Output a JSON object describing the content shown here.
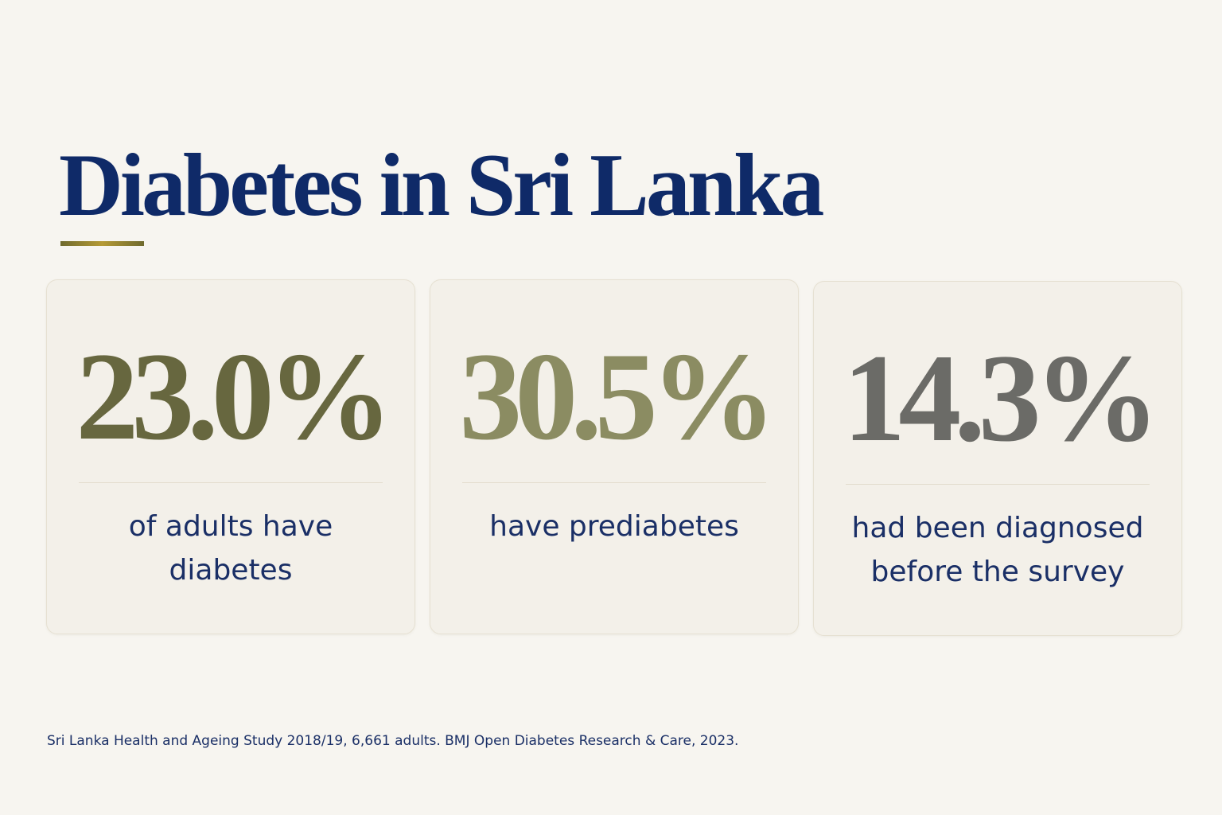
{
  "title": "Diabetes in Sri Lanka",
  "colors": {
    "background": "#f7f5f0",
    "title": "#0f2a68",
    "accent_rule": "#b59a35",
    "card_background": "#f3f0e9",
    "label_text": "#1a2f66"
  },
  "stats": [
    {
      "value": "23.0%",
      "label": "of adults have diabetes",
      "value_color": "#67673f"
    },
    {
      "value": "30.5%",
      "label": "have prediabetes",
      "value_color": "#8b8c62"
    },
    {
      "value": "14.3%",
      "label": "had been diagnosed before the survey",
      "value_color": "#6b6b67"
    }
  ],
  "source": "Sri Lanka Health and Ageing Study 2018/19, 6,661 adults. BMJ Open Diabetes Research & Care, 2023."
}
